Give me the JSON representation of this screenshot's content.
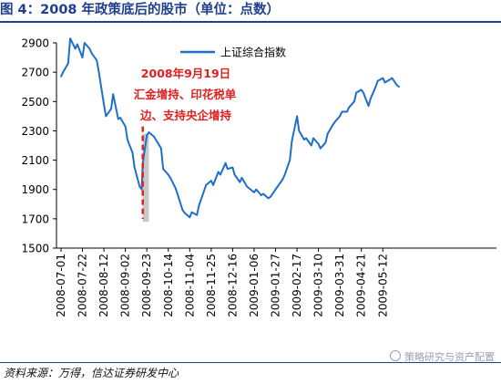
{
  "title": "图 4：2008 年政策底后的股市（单位：点数）",
  "source": "资料来源：万得，信达证券研发中心",
  "watermark": "策略研究与资产配置",
  "colors": {
    "title": "#1f3f8f",
    "line": "#1f6fc8",
    "annotation": "#e02020",
    "shade": "#c8c8c8"
  },
  "chart_data": {
    "type": "line",
    "title": "",
    "xlabel": "",
    "ylabel": "",
    "ylim": [
      1500,
      2900
    ],
    "yticks": [
      1500,
      1700,
      1900,
      2100,
      2300,
      2500,
      2700,
      2900
    ],
    "grid": false,
    "legend_position": "top-right",
    "xticks": [
      "2008-07-01",
      "2008-07-22",
      "2008-08-12",
      "2008-09-02",
      "2008-09-23",
      "2008-10-14",
      "2008-11-04",
      "2008-11-25",
      "2008-12-16",
      "2009-01-06",
      "2009-01-27",
      "2009-02-17",
      "2009-03-10",
      "2009-03-31",
      "2009-04-21",
      "2009-05-12"
    ],
    "series": [
      {
        "name": "上证综合指数",
        "x": [
          "2008-07-01",
          "2008-07-03",
          "2008-07-08",
          "2008-07-10",
          "2008-07-15",
          "2008-07-17",
          "2008-07-22",
          "2008-07-24",
          "2008-07-29",
          "2008-07-31",
          "2008-08-05",
          "2008-08-07",
          "2008-08-12",
          "2008-08-14",
          "2008-08-19",
          "2008-08-21",
          "2008-08-26",
          "2008-08-28",
          "2008-09-02",
          "2008-09-04",
          "2008-09-09",
          "2008-09-11",
          "2008-09-16",
          "2008-09-18",
          "2008-09-19",
          "2008-09-23",
          "2008-09-25",
          "2008-09-30",
          "2008-10-07",
          "2008-10-09",
          "2008-10-14",
          "2008-10-16",
          "2008-10-21",
          "2008-10-23",
          "2008-10-28",
          "2008-10-30",
          "2008-11-04",
          "2008-11-06",
          "2008-11-11",
          "2008-11-13",
          "2008-11-18",
          "2008-11-20",
          "2008-11-25",
          "2008-11-27",
          "2008-12-02",
          "2008-12-04",
          "2008-12-09",
          "2008-12-11",
          "2008-12-16",
          "2008-12-18",
          "2008-12-23",
          "2008-12-25",
          "2008-12-30",
          "2009-01-06",
          "2009-01-08",
          "2009-01-13",
          "2009-01-15",
          "2009-01-20",
          "2009-01-22",
          "2009-01-27",
          "2009-02-03",
          "2009-02-05",
          "2009-02-10",
          "2009-02-12",
          "2009-02-17",
          "2009-02-19",
          "2009-02-24",
          "2009-02-26",
          "2009-03-03",
          "2009-03-05",
          "2009-03-10",
          "2009-03-12",
          "2009-03-17",
          "2009-03-19",
          "2009-03-24",
          "2009-03-26",
          "2009-03-31",
          "2009-04-02",
          "2009-04-07",
          "2009-04-09",
          "2009-04-14",
          "2009-04-16",
          "2009-04-21",
          "2009-04-23",
          "2009-04-28",
          "2009-04-30",
          "2009-05-05",
          "2009-05-07",
          "2009-05-12",
          "2009-05-14",
          "2009-05-19",
          "2009-05-21",
          "2009-05-26",
          "2009-05-28"
        ],
        "values": [
          2670,
          2700,
          2760,
          2930,
          2860,
          2890,
          2800,
          2900,
          2860,
          2830,
          2780,
          2700,
          2480,
          2400,
          2450,
          2550,
          2380,
          2390,
          2330,
          2240,
          2150,
          2050,
          1920,
          1900,
          2080,
          2270,
          2290,
          2260,
          2180,
          2040,
          2000,
          1980,
          1910,
          1870,
          1760,
          1740,
          1710,
          1745,
          1725,
          1790,
          1890,
          1930,
          1960,
          1930,
          2020,
          2000,
          2080,
          2040,
          2050,
          2000,
          1950,
          1980,
          1920,
          1880,
          1900,
          1860,
          1870,
          1840,
          1850,
          1900,
          1970,
          2000,
          2100,
          2230,
          2400,
          2300,
          2240,
          2250,
          2200,
          2250,
          2210,
          2180,
          2220,
          2280,
          2340,
          2360,
          2400,
          2430,
          2430,
          2460,
          2500,
          2560,
          2580,
          2560,
          2470,
          2520,
          2600,
          2640,
          2660,
          2630,
          2650,
          2660,
          2610,
          2600
        ]
      }
    ],
    "annotations": [
      {
        "date": "2008-09-19",
        "lines": [
          "2008年9月19日",
          "汇金增持、印花税单",
          "边、支持央企增持"
        ]
      }
    ],
    "shaded_range": [
      "2008-09-19",
      "2008-09-25"
    ]
  }
}
